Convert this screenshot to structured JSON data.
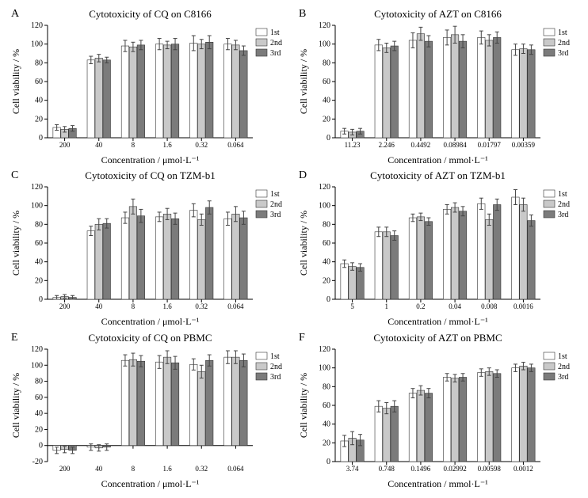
{
  "global": {
    "legend_labels": [
      "1st",
      "2nd",
      "3rd"
    ],
    "bar_colors": [
      "#ffffff",
      "#c9c9c9",
      "#7b7b7b"
    ],
    "bar_stroke": "#333333",
    "err_color": "#444444",
    "axis_color": "#000000",
    "background": "#ffffff",
    "ylabel": "Cell viability / %",
    "title_fontsize": 13,
    "axis_label_fontsize": 12,
    "tick_fontsize": 10,
    "legend_fontsize": 10,
    "err_cap_halfwidth": 2.5
  },
  "panels": [
    {
      "id": "A",
      "title": "Cytotoxicity of CQ on C8166",
      "xlabel": "Concentration / μmol·L⁻¹",
      "ylim": [
        0,
        120
      ],
      "ytick_step": 20,
      "categories": [
        "200",
        "40",
        "8",
        "1.6",
        "0.32",
        "0.064"
      ],
      "series": [
        {
          "name": "1st",
          "values": [
            11,
            83,
            98,
            100,
            101,
            100
          ],
          "errors": [
            3,
            4,
            6,
            6,
            8,
            6
          ]
        },
        {
          "name": "2nd",
          "values": [
            9,
            85,
            97,
            99,
            100,
            99
          ],
          "errors": [
            3,
            4,
            5,
            4,
            5,
            5
          ]
        },
        {
          "name": "3rd",
          "values": [
            10,
            83,
            99,
            100,
            102,
            93
          ],
          "errors": [
            3,
            3,
            5,
            6,
            7,
            5
          ]
        }
      ]
    },
    {
      "id": "B",
      "title": "Cytotoxicity of AZT on C8166",
      "xlabel": "Concentration / mmol·L⁻¹",
      "ylim": [
        0,
        120
      ],
      "ytick_step": 20,
      "categories": [
        "11.23",
        "2.246",
        "0.4492",
        "0.08984",
        "0.01797",
        "0.00359"
      ],
      "series": [
        {
          "name": "1st",
          "values": [
            7,
            99,
            104,
            107,
            107,
            94
          ],
          "errors": [
            3,
            6,
            8,
            8,
            7,
            6
          ]
        },
        {
          "name": "2nd",
          "values": [
            6,
            96,
            111,
            110,
            104,
            95
          ],
          "errors": [
            3,
            5,
            7,
            9,
            6,
            5
          ]
        },
        {
          "name": "3rd",
          "values": [
            7,
            98,
            103,
            103,
            107,
            94
          ],
          "errors": [
            3,
            5,
            6,
            7,
            6,
            5
          ]
        }
      ]
    },
    {
      "id": "C",
      "title": "Cytotoxicity of CQ on TZM-b1",
      "xlabel": "Concentration / μmol·L⁻¹",
      "ylim": [
        0,
        120
      ],
      "ytick_step": 20,
      "categories": [
        "200",
        "40",
        "8",
        "1.6",
        "0.32",
        "0.064"
      ],
      "series": [
        {
          "name": "1st",
          "values": [
            2,
            73,
            87,
            88,
            95,
            86
          ],
          "errors": [
            2,
            5,
            6,
            5,
            7,
            7
          ]
        },
        {
          "name": "2nd",
          "values": [
            3,
            80,
            99,
            91,
            85,
            91
          ],
          "errors": [
            2,
            6,
            8,
            6,
            6,
            8
          ]
        },
        {
          "name": "3rd",
          "values": [
            2,
            81,
            89,
            86,
            98,
            87
          ],
          "errors": [
            2,
            5,
            7,
            6,
            7,
            7
          ]
        }
      ]
    },
    {
      "id": "D",
      "title": "Cytotoxicity of AZT on TZM-b1",
      "xlabel": "Concentration / mmol·L⁻¹",
      "ylim": [
        0,
        120
      ],
      "ytick_step": 20,
      "categories": [
        "5",
        "1",
        "0.2",
        "0.04",
        "0.008",
        "0.0016"
      ],
      "series": [
        {
          "name": "1st",
          "values": [
            38,
            72,
            87,
            96,
            102,
            109
          ],
          "errors": [
            4,
            5,
            4,
            5,
            6,
            8
          ]
        },
        {
          "name": "2nd",
          "values": [
            35,
            72,
            88,
            98,
            85,
            101
          ],
          "errors": [
            4,
            5,
            4,
            5,
            6,
            7
          ]
        },
        {
          "name": "3rd",
          "values": [
            34,
            68,
            83,
            94,
            101,
            84
          ],
          "errors": [
            4,
            5,
            4,
            5,
            6,
            6
          ]
        }
      ]
    },
    {
      "id": "E",
      "title": "Cytotoxicity of CQ on PBMC",
      "xlabel": "Concentration / μmol·L⁻¹",
      "ylim": [
        -20,
        120
      ],
      "ytick_step": 20,
      "categories": [
        "200",
        "40",
        "8",
        "1.6",
        "0.32",
        "0.064"
      ],
      "series": [
        {
          "name": "1st",
          "values": [
            -6,
            -2,
            106,
            104,
            101,
            110
          ],
          "errors": [
            4,
            4,
            7,
            8,
            7,
            8
          ]
        },
        {
          "name": "2nd",
          "values": [
            -5,
            -3,
            107,
            110,
            92,
            110
          ],
          "errors": [
            4,
            4,
            8,
            8,
            8,
            8
          ]
        },
        {
          "name": "3rd",
          "values": [
            -6,
            -2,
            105,
            103,
            106,
            106
          ],
          "errors": [
            4,
            4,
            7,
            8,
            7,
            8
          ]
        }
      ]
    },
    {
      "id": "F",
      "title": "Cytotoxicity of AZT on PBMC",
      "xlabel": "Concentration / mmol·L⁻¹",
      "ylim": [
        0,
        120
      ],
      "ytick_step": 20,
      "categories": [
        "3.74",
        "0.748",
        "0.1496",
        "0.02992",
        "0.00598",
        "0.0012"
      ],
      "series": [
        {
          "name": "1st",
          "values": [
            22,
            59,
            73,
            90,
            95,
            100
          ],
          "errors": [
            6,
            6,
            5,
            4,
            4,
            4
          ]
        },
        {
          "name": "2nd",
          "values": [
            25,
            57,
            76,
            89,
            96,
            102
          ],
          "errors": [
            7,
            6,
            5,
            4,
            4,
            4
          ]
        },
        {
          "name": "3rd",
          "values": [
            23,
            59,
            73,
            90,
            94,
            100
          ],
          "errors": [
            6,
            6,
            5,
            4,
            4,
            4
          ]
        }
      ]
    }
  ]
}
